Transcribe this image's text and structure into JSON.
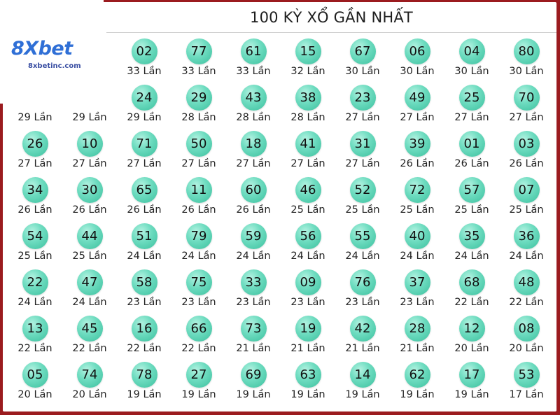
{
  "header": {
    "title": "100 KỲ XỔ GẦN NHẤT"
  },
  "logo": {
    "brand": "8Xbet",
    "site": "8xbetinc.com"
  },
  "colors": {
    "frame": "#9b1b1f",
    "ball": "#6edcc0",
    "brand": "#2f6fd6"
  },
  "count_suffix": "Lần",
  "rows": [
    [
      {
        "n": "",
        "c": ""
      },
      {
        "n": "",
        "c": ""
      },
      {
        "n": "02",
        "c": "33 Lần"
      },
      {
        "n": "77",
        "c": "33 Lần"
      },
      {
        "n": "61",
        "c": "33 Lần"
      },
      {
        "n": "15",
        "c": "32 Lần"
      },
      {
        "n": "67",
        "c": "30 Lần"
      },
      {
        "n": "06",
        "c": "30 Lần"
      },
      {
        "n": "04",
        "c": "30 Lần"
      },
      {
        "n": "80",
        "c": "30 Lần"
      }
    ],
    [
      {
        "n": "",
        "c": "29 Lần"
      },
      {
        "n": "",
        "c": "29 Lần"
      },
      {
        "n": "24",
        "c": "29 Lần"
      },
      {
        "n": "29",
        "c": "28 Lần"
      },
      {
        "n": "43",
        "c": "28 Lần"
      },
      {
        "n": "38",
        "c": "28 Lần"
      },
      {
        "n": "23",
        "c": "27 Lần"
      },
      {
        "n": "49",
        "c": "27 Lần"
      },
      {
        "n": "25",
        "c": "27 Lần"
      },
      {
        "n": "70",
        "c": "27 Lần"
      }
    ],
    [
      {
        "n": "26",
        "c": "27 Lần"
      },
      {
        "n": "10",
        "c": "27 Lần"
      },
      {
        "n": "71",
        "c": "27 Lần"
      },
      {
        "n": "50",
        "c": "27 Lần"
      },
      {
        "n": "18",
        "c": "27 Lần"
      },
      {
        "n": "41",
        "c": "27 Lần"
      },
      {
        "n": "31",
        "c": "27 Lần"
      },
      {
        "n": "39",
        "c": "26 Lần"
      },
      {
        "n": "01",
        "c": "26 Lần"
      },
      {
        "n": "03",
        "c": "26 Lần"
      }
    ],
    [
      {
        "n": "34",
        "c": "26 Lần"
      },
      {
        "n": "30",
        "c": "26 Lần"
      },
      {
        "n": "65",
        "c": "26 Lần"
      },
      {
        "n": "11",
        "c": "26 Lần"
      },
      {
        "n": "60",
        "c": "26 Lần"
      },
      {
        "n": "46",
        "c": "25 Lần"
      },
      {
        "n": "52",
        "c": "25 Lần"
      },
      {
        "n": "72",
        "c": "25 Lần"
      },
      {
        "n": "57",
        "c": "25 Lần"
      },
      {
        "n": "07",
        "c": "25 Lần"
      }
    ],
    [
      {
        "n": "54",
        "c": "25 Lần"
      },
      {
        "n": "44",
        "c": "25 Lần"
      },
      {
        "n": "51",
        "c": "24 Lần"
      },
      {
        "n": "79",
        "c": "24 Lần"
      },
      {
        "n": "59",
        "c": "24 Lần"
      },
      {
        "n": "56",
        "c": "24 Lần"
      },
      {
        "n": "55",
        "c": "24 Lần"
      },
      {
        "n": "40",
        "c": "24 Lần"
      },
      {
        "n": "35",
        "c": "24 Lần"
      },
      {
        "n": "36",
        "c": "24 Lần"
      }
    ],
    [
      {
        "n": "22",
        "c": "24 Lần"
      },
      {
        "n": "47",
        "c": "24 Lần"
      },
      {
        "n": "58",
        "c": "23 Lần"
      },
      {
        "n": "75",
        "c": "23 Lần"
      },
      {
        "n": "33",
        "c": "23 Lần"
      },
      {
        "n": "09",
        "c": "23 Lần"
      },
      {
        "n": "76",
        "c": "23 Lần"
      },
      {
        "n": "37",
        "c": "23 Lần"
      },
      {
        "n": "68",
        "c": "22 Lần"
      },
      {
        "n": "48",
        "c": "22 Lần"
      }
    ],
    [
      {
        "n": "13",
        "c": "22 Lần"
      },
      {
        "n": "45",
        "c": "22 Lần"
      },
      {
        "n": "16",
        "c": "22 Lần"
      },
      {
        "n": "66",
        "c": "22 Lần"
      },
      {
        "n": "73",
        "c": "21 Lần"
      },
      {
        "n": "19",
        "c": "21 Lần"
      },
      {
        "n": "42",
        "c": "21 Lần"
      },
      {
        "n": "28",
        "c": "21 Lần"
      },
      {
        "n": "12",
        "c": "20 Lần"
      },
      {
        "n": "08",
        "c": "20 Lần"
      }
    ],
    [
      {
        "n": "05",
        "c": "20 Lần"
      },
      {
        "n": "74",
        "c": "20 Lần"
      },
      {
        "n": "78",
        "c": "19 Lần"
      },
      {
        "n": "27",
        "c": "19 Lần"
      },
      {
        "n": "69",
        "c": "19 Lần"
      },
      {
        "n": "63",
        "c": "19 Lần"
      },
      {
        "n": "14",
        "c": "19 Lần"
      },
      {
        "n": "62",
        "c": "19 Lần"
      },
      {
        "n": "17",
        "c": "19 Lần"
      },
      {
        "n": "53",
        "c": "17 Lần"
      }
    ]
  ]
}
